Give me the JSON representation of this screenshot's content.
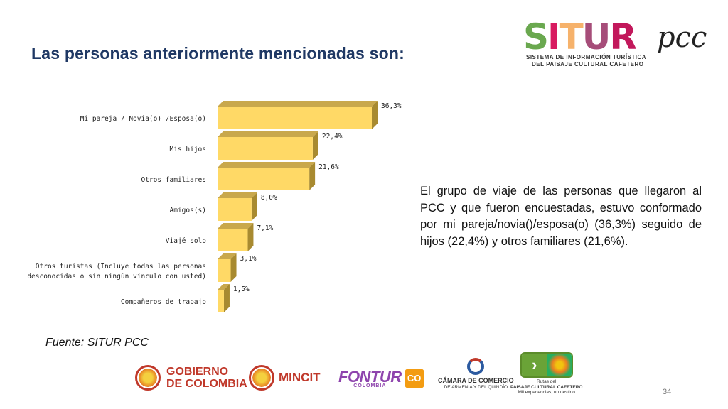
{
  "title": "Las personas anteriormente mencionadas son:",
  "logo": {
    "situr_letters": [
      "S",
      "I",
      "T",
      "U",
      "R"
    ],
    "situr_colors": [
      "#6aa84f",
      "#d81b60",
      "#f6b26b",
      "#a64d79",
      "#c2185b"
    ],
    "pcc": "pcc",
    "subtitle_line1": "SISTEMA DE INFORMACIÓN TURÍSTICA",
    "subtitle_line2": "DEL PAISAJE CULTURAL CAFETERO"
  },
  "chart_data": {
    "type": "bar",
    "orientation": "horizontal",
    "style": "3d",
    "categories": [
      "Mi pareja / Novia(o) /Esposa(o)",
      "Mis hijos",
      "Otros familiares",
      "Amigos(s)",
      "Viajé solo",
      "Otros turistas (Incluye todas las personas desconocidas o sin ningún vínculo con usted)",
      "Compañeros de trabajo"
    ],
    "category_lines": [
      [
        "Mi pareja / Novia(o) /Esposa(o)"
      ],
      [
        "Mis hijos"
      ],
      [
        "Otros familiares"
      ],
      [
        "Amigos(s)"
      ],
      [
        "Viajé solo"
      ],
      [
        "Otros turistas (Incluye todas las personas",
        "desconocidas o sin ningún vínculo con usted)"
      ],
      [
        "Compañeros de trabajo"
      ]
    ],
    "values": [
      36.3,
      22.4,
      21.6,
      8.0,
      7.1,
      3.1,
      1.5
    ],
    "value_labels": [
      "36,3%",
      "22,4%",
      "21,6%",
      "8,0%",
      "7,1%",
      "3,1%",
      "1,5%"
    ],
    "bar_color": "#ffd966",
    "bar_top_color": "#c9a84c",
    "bar_side_color": "#a88a30",
    "xlim": [
      0,
      40
    ]
  },
  "body_text": "El grupo de viaje de las personas que llegaron al PCC y que fueron encuestadas, estuvo conformado por mi pareja/novia()/esposa(o) (36,3%) seguido de hijos (22,4%) y otros familiares (21,6%).",
  "source": "Fuente: SITUR PCC",
  "footer": {
    "gobierno_line1": "GOBIERNO",
    "gobierno_line2": "DE COLOMBIA",
    "mincit": "MINCIT",
    "fontur": "FONTUR",
    "fontur_sub": "COLOMBIA",
    "co_badge": "CO",
    "camara_line1": "CÁMARA DE COMERCIO",
    "camara_line2": "DE ARMENIA Y DEL QUINDÍO",
    "rutas_line1": "Rutas del",
    "rutas_line2": "PAISAJE CULTURAL CAFETERO",
    "rutas_line3": "Mil experiencias, un destino"
  },
  "page_number": "34"
}
